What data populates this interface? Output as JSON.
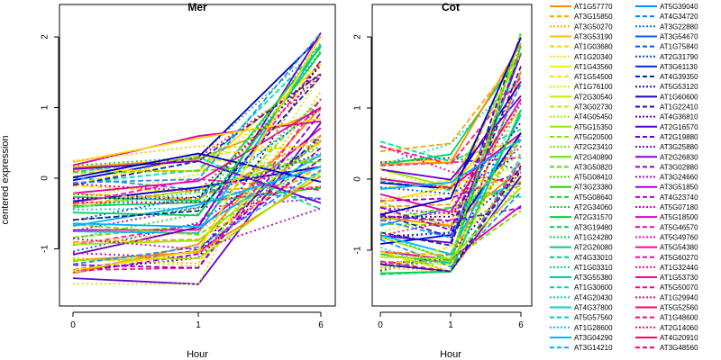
{
  "figure": {
    "ylabel": "centered expression",
    "xlabel": "Hour"
  },
  "chart_data": [
    {
      "type": "line",
      "title": "Mer",
      "x": [
        0,
        1,
        6
      ],
      "xtick_labels": [
        "0",
        "1",
        "6"
      ],
      "xlabel": "Hour",
      "ylabel": "centered expression",
      "yticks": [
        -1,
        0,
        1,
        2
      ],
      "ylim": [
        -1.6,
        2.2
      ],
      "grid": false,
      "summary": "many overlaid gene expression trajectories rising from about -1.5..0.25 at hour 0 to about -0.5..2.2 at hour 6"
    },
    {
      "type": "line",
      "title": "Cot",
      "x": [
        0,
        1,
        6
      ],
      "xtick_labels": [
        "0",
        "1",
        "6"
      ],
      "xlabel": "Hour",
      "yticks": [
        -1,
        0,
        1,
        2
      ],
      "ylim": [
        -1.6,
        2.2
      ],
      "grid": false,
      "summary": "many overlaid gene expression trajectories rising from about -1.4..0.6 at hour 0 to about -0.5..2.2 at hour 6"
    }
  ],
  "legend": {
    "placement": "right",
    "columns": [
      [
        "AT1G57770",
        "AT3G15850",
        "AT3G50270",
        "AT3G53190",
        "AT1G03680",
        "AT1G20340",
        "AT1G43560",
        "AT1G54500",
        "AT1G76100",
        "AT2G30540",
        "AT3G02730",
        "AT4G05450",
        "AT5G15350",
        "AT5G20500",
        "AT2G23410",
        "AT2G40890",
        "AT3G50820",
        "AT5G08410",
        "AT3G23380",
        "AT5G08640",
        "AT2G34060",
        "AT2G31570",
        "AT3G19480",
        "AT1G24280",
        "AT2G26080",
        "AT4G33010",
        "AT1G03310",
        "AT3G55380",
        "AT1G30600",
        "AT4G20430",
        "AT4G37800",
        "AT5G57560",
        "AT1G28600",
        "AT3G04290",
        "AT3G14210"
      ],
      [
        "AT5G39040",
        "AT4G34720",
        "AT3G22880",
        "AT3G54670",
        "AT1G75840",
        "AT2G31790",
        "AT3G61130",
        "AT4G39350",
        "AT5G53120",
        "AT1G60600",
        "AT1G22410",
        "AT4G36810",
        "AT2G16570",
        "AT2G19880",
        "AT3G25880",
        "AT2G26830",
        "AT3G02880",
        "AT3G24660",
        "AT3G51850",
        "AT4G23740",
        "AT5G07180",
        "AT5G18500",
        "AT5G46570",
        "AT5G49760",
        "AT5G54380",
        "AT5G60270",
        "AT1G32440",
        "AT1G53730",
        "AT5G50070",
        "AT1G29940",
        "AT5G52560",
        "AT1G48600",
        "AT2G14060",
        "AT4G20910",
        "AT3G48560"
      ]
    ]
  }
}
